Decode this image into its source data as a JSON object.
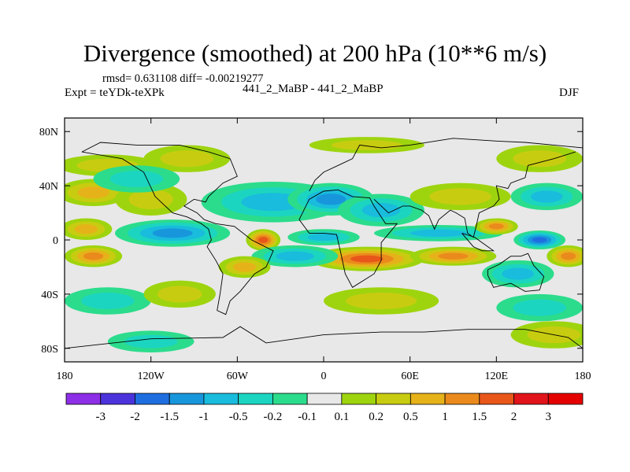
{
  "chart_data": {
    "type": "heatmap",
    "title": "Divergence (smoothed) at 200 hPa (10**6 m/s)",
    "stats": "rmsd= 0.631108  diff= -0.00219277",
    "experiment": "Expt = teYDk-teXPk",
    "experiment_names": "441_2_MaBP - 441_2_MaBP",
    "season": "DJF",
    "x_ticks": [
      "180",
      "120W",
      "60W",
      "0",
      "60E",
      "120E",
      "180"
    ],
    "y_ticks": [
      "80N",
      "40N",
      "0",
      "40S",
      "80S"
    ],
    "xlim": [
      -180,
      180
    ],
    "ylim": [
      -90,
      90
    ],
    "colorbar_labels": [
      "-3",
      "-2",
      "-1.5",
      "-1",
      "-0.5",
      "-0.2",
      "-0.1",
      "0.1",
      "0.2",
      "0.5",
      "1",
      "1.5",
      "2",
      "3"
    ],
    "levels": [
      -3,
      -2,
      -1.5,
      -1,
      -0.5,
      -0.2,
      -0.1,
      0.1,
      0.2,
      0.5,
      1,
      1.5,
      2,
      3
    ],
    "colors": [
      "#8d2fe6",
      "#4b33dc",
      "#1f6ee0",
      "#1896dc",
      "#19bcdc",
      "#1cd5c0",
      "#2bdc8c",
      "#e8e8e8",
      "#9ed40e",
      "#c8cc10",
      "#e6b21a",
      "#ea8a1c",
      "#e8561a",
      "#e0141a",
      "#e50000"
    ],
    "background_color": "#e8e8e8",
    "features": [
      {
        "kind": "positive",
        "lon": -150,
        "lat": 55,
        "rx": 35,
        "ry": 8,
        "v": 0.3
      },
      {
        "kind": "positive",
        "lon": -95,
        "lat": 60,
        "rx": 30,
        "ry": 10,
        "v": 0.3
      },
      {
        "kind": "positive",
        "lon": 30,
        "lat": 70,
        "rx": 40,
        "ry": 6,
        "v": 0.25
      },
      {
        "kind": "positive",
        "lon": 150,
        "lat": 60,
        "rx": 30,
        "ry": 10,
        "v": 0.3
      },
      {
        "kind": "positive",
        "lon": -160,
        "lat": 35,
        "rx": 25,
        "ry": 10,
        "v": 0.6
      },
      {
        "kind": "positive",
        "lon": -120,
        "lat": 30,
        "rx": 25,
        "ry": 12,
        "v": 0.4
      },
      {
        "kind": "negative",
        "lon": -130,
        "lat": 45,
        "rx": 30,
        "ry": 10,
        "v": -0.3
      },
      {
        "kind": "negative",
        "lon": -35,
        "lat": 28,
        "rx": 50,
        "ry": 15,
        "v": -0.8
      },
      {
        "kind": "negative",
        "lon": 5,
        "lat": 30,
        "rx": 30,
        "ry": 12,
        "v": -1.1
      },
      {
        "kind": "negative",
        "lon": 40,
        "lat": 22,
        "rx": 30,
        "ry": 12,
        "v": -0.6
      },
      {
        "kind": "positive",
        "lon": 95,
        "lat": 32,
        "rx": 35,
        "ry": 10,
        "v": 0.4
      },
      {
        "kind": "negative",
        "lon": 155,
        "lat": 32,
        "rx": 25,
        "ry": 10,
        "v": -0.5
      },
      {
        "kind": "positive",
        "lon": -165,
        "lat": 8,
        "rx": 18,
        "ry": 8,
        "v": 0.8
      },
      {
        "kind": "negative",
        "lon": -105,
        "lat": 5,
        "rx": 40,
        "ry": 10,
        "v": -1.2
      },
      {
        "kind": "positive",
        "lon": -42,
        "lat": 0,
        "rx": 12,
        "ry": 8,
        "v": 1.6
      },
      {
        "kind": "negative",
        "lon": 0,
        "lat": 2,
        "rx": 25,
        "ry": 6,
        "v": -0.5
      },
      {
        "kind": "negative",
        "lon": 80,
        "lat": 5,
        "rx": 45,
        "ry": 6,
        "v": -0.9
      },
      {
        "kind": "negative",
        "lon": 150,
        "lat": 0,
        "rx": 18,
        "ry": 7,
        "v": -1.5
      },
      {
        "kind": "positive",
        "lon": 120,
        "lat": 10,
        "rx": 15,
        "ry": 6,
        "v": 1.2
      },
      {
        "kind": "positive",
        "lon": 30,
        "lat": -14,
        "rx": 40,
        "ry": 9,
        "v": 1.8
      },
      {
        "kind": "positive",
        "lon": 90,
        "lat": -12,
        "rx": 30,
        "ry": 7,
        "v": 1.4
      },
      {
        "kind": "positive",
        "lon": -160,
        "lat": -12,
        "rx": 20,
        "ry": 8,
        "v": 1.0
      },
      {
        "kind": "positive",
        "lon": 170,
        "lat": -12,
        "rx": 15,
        "ry": 8,
        "v": 1.0
      },
      {
        "kind": "negative",
        "lon": -20,
        "lat": -12,
        "rx": 30,
        "ry": 8,
        "v": -0.6
      },
      {
        "kind": "positive",
        "lon": -55,
        "lat": -20,
        "rx": 18,
        "ry": 8,
        "v": 0.6
      },
      {
        "kind": "negative",
        "lon": 135,
        "lat": -25,
        "rx": 25,
        "ry": 10,
        "v": -0.6
      },
      {
        "kind": "negative",
        "lon": -150,
        "lat": -45,
        "rx": 30,
        "ry": 10,
        "v": -0.4
      },
      {
        "kind": "positive",
        "lon": -100,
        "lat": -40,
        "rx": 25,
        "ry": 10,
        "v": 0.4
      },
      {
        "kind": "positive",
        "lon": 40,
        "lat": -45,
        "rx": 40,
        "ry": 10,
        "v": 0.3
      },
      {
        "kind": "negative",
        "lon": 150,
        "lat": -50,
        "rx": 30,
        "ry": 10,
        "v": -0.4
      },
      {
        "kind": "positive",
        "lon": 160,
        "lat": -70,
        "rx": 30,
        "ry": 10,
        "v": 0.3
      },
      {
        "kind": "negative",
        "lon": -120,
        "lat": -75,
        "rx": 30,
        "ry": 8,
        "v": -0.2
      }
    ],
    "coastlines": [
      [
        [
          -168,
          65
        ],
        [
          -140,
          60
        ],
        [
          -125,
          50
        ],
        [
          -117,
          32
        ],
        [
          -105,
          20
        ],
        [
          -95,
          17
        ],
        [
          -85,
          12
        ],
        [
          -80,
          8
        ],
        [
          -78,
          0
        ],
        [
          -81,
          -5
        ],
        [
          -75,
          -15
        ],
        [
          -70,
          -25
        ],
        [
          -72,
          -40
        ],
        [
          -74,
          -52
        ],
        [
          -68,
          -55
        ],
        [
          -65,
          -45
        ],
        [
          -58,
          -38
        ],
        [
          -48,
          -25
        ],
        [
          -40,
          -20
        ],
        [
          -35,
          -8
        ],
        [
          -50,
          0
        ],
        [
          -62,
          10
        ],
        [
          -75,
          12
        ],
        [
          -83,
          15
        ],
        [
          -88,
          20
        ],
        [
          -97,
          25
        ],
        [
          -90,
          30
        ],
        [
          -82,
          28
        ],
        [
          -80,
          32
        ],
        [
          -70,
          42
        ],
        [
          -60,
          47
        ],
        [
          -65,
          60
        ],
        [
          -80,
          65
        ],
        [
          -100,
          70
        ],
        [
          -130,
          70
        ],
        [
          -155,
          72
        ],
        [
          -168,
          65
        ]
      ],
      [
        [
          -10,
          36
        ],
        [
          -6,
          44
        ],
        [
          0,
          50
        ],
        [
          10,
          55
        ],
        [
          20,
          60
        ],
        [
          25,
          70
        ],
        [
          40,
          68
        ],
        [
          60,
          70
        ],
        [
          90,
          75
        ],
        [
          120,
          73
        ],
        [
          140,
          72
        ],
        [
          160,
          70
        ],
        [
          180,
          68
        ]
      ],
      [
        [
          -17,
          15
        ],
        [
          -10,
          30
        ],
        [
          0,
          36
        ],
        [
          10,
          37
        ],
        [
          20,
          32
        ],
        [
          32,
          31
        ],
        [
          35,
          25
        ],
        [
          43,
          12
        ],
        [
          51,
          12
        ],
        [
          40,
          -2
        ],
        [
          40,
          -15
        ],
        [
          35,
          -25
        ],
        [
          20,
          -35
        ],
        [
          15,
          -25
        ],
        [
          12,
          -10
        ],
        [
          9,
          4
        ],
        [
          0,
          5
        ],
        [
          -10,
          5
        ],
        [
          -17,
          15
        ]
      ],
      [
        [
          35,
          30
        ],
        [
          45,
          20
        ],
        [
          55,
          25
        ],
        [
          60,
          25
        ],
        [
          68,
          22
        ],
        [
          73,
          18
        ],
        [
          77,
          8
        ],
        [
          80,
          15
        ],
        [
          88,
          22
        ],
        [
          92,
          20
        ],
        [
          98,
          16
        ],
        [
          100,
          5
        ],
        [
          104,
          2
        ],
        [
          106,
          10
        ],
        [
          108,
          20
        ],
        [
          118,
          25
        ],
        [
          122,
          30
        ],
        [
          120,
          40
        ],
        [
          128,
          38
        ],
        [
          130,
          42
        ],
        [
          140,
          46
        ],
        [
          142,
          55
        ],
        [
          160,
          60
        ],
        [
          175,
          65
        ]
      ],
      [
        [
          114,
          -22
        ],
        [
          122,
          -18
        ],
        [
          130,
          -12
        ],
        [
          137,
          -12
        ],
        [
          142,
          -10
        ],
        [
          146,
          -19
        ],
        [
          153,
          -27
        ],
        [
          150,
          -37
        ],
        [
          140,
          -38
        ],
        [
          130,
          -32
        ],
        [
          118,
          -35
        ],
        [
          114,
          -26
        ],
        [
          114,
          -22
        ]
      ],
      [
        [
          -180,
          -80
        ],
        [
          -120,
          -73
        ],
        [
          -70,
          -72
        ],
        [
          -58,
          -64
        ],
        [
          -40,
          -76
        ],
        [
          0,
          -70
        ],
        [
          40,
          -68
        ],
        [
          70,
          -68
        ],
        [
          100,
          -66
        ],
        [
          140,
          -66
        ],
        [
          170,
          -72
        ],
        [
          180,
          -80
        ]
      ],
      [
        [
          96,
          5
        ],
        [
          104,
          -5
        ],
        [
          110,
          -8
        ],
        [
          118,
          -8
        ],
        [
          110,
          -2
        ],
        [
          105,
          2
        ],
        [
          96,
          5
        ]
      ]
    ]
  }
}
